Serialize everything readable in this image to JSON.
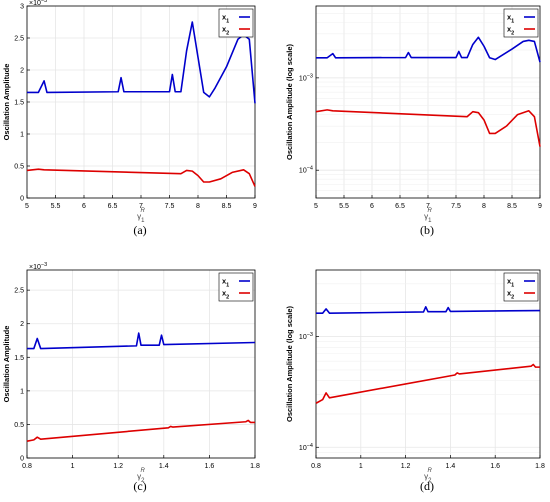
{
  "figure": {
    "captions": [
      "(a)",
      "(b)",
      "(c)",
      "(d)"
    ]
  },
  "colors": {
    "x1": "#0000cc",
    "x2": "#dd0000",
    "axis": "#000000",
    "grid": "#e6e6e6"
  },
  "chart_data": [
    {
      "type": "line",
      "panel": "a",
      "xlabel": "γ1R",
      "ylabel": "Oscillation Amplitude",
      "exponent_label": "×10−3",
      "xlim": [
        5,
        9
      ],
      "ylim": [
        0,
        0.003
      ],
      "yscale": "linear",
      "xticks": [
        5,
        5.5,
        6,
        6.5,
        7,
        7.5,
        8,
        8.5,
        9
      ],
      "xtick_labels": [
        "5",
        "5.5",
        "6",
        "6.5",
        "7",
        "7.5",
        "8",
        "8.5",
        "9"
      ],
      "yticks": [
        0,
        0.0005,
        0.001,
        0.0015,
        0.002,
        0.0025,
        0.003
      ],
      "ytick_labels": [
        "0",
        "0.5",
        "1",
        "1.5",
        "2",
        "2.5",
        "3"
      ],
      "grid": true,
      "legend": "top-right",
      "series": [
        {
          "name": "x1",
          "x": [
            5.0,
            5.2,
            5.3,
            5.35,
            6.6,
            6.65,
            6.7,
            7.5,
            7.55,
            7.6,
            7.7,
            7.8,
            7.9,
            8.0,
            8.1,
            8.2,
            8.3,
            8.5,
            8.7,
            8.8,
            8.9,
            9.0
          ],
          "y": [
            0.00165,
            0.00165,
            0.00183,
            0.00165,
            0.00166,
            0.00188,
            0.00166,
            0.00166,
            0.00193,
            0.00166,
            0.00166,
            0.0023,
            0.00275,
            0.0022,
            0.00165,
            0.00158,
            0.00172,
            0.00205,
            0.00248,
            0.00255,
            0.00248,
            0.00148
          ]
        },
        {
          "name": "x2",
          "x": [
            5.0,
            5.2,
            5.3,
            7.7,
            7.8,
            7.9,
            8.0,
            8.1,
            8.2,
            8.4,
            8.6,
            8.8,
            8.9,
            9.0
          ],
          "y": [
            0.00043,
            0.00045,
            0.00044,
            0.00038,
            0.00043,
            0.00042,
            0.00035,
            0.00025,
            0.00025,
            0.0003,
            0.0004,
            0.00044,
            0.00038,
            0.00018
          ]
        }
      ]
    },
    {
      "type": "line",
      "panel": "b",
      "xlabel": "γ1R",
      "ylabel": "Oscillation Amplitude (log scale)",
      "xlim": [
        5,
        9
      ],
      "ylim": [
        5e-05,
        0.006
      ],
      "yscale": "log",
      "xticks": [
        5,
        5.5,
        6,
        6.5,
        7,
        7.5,
        8,
        8.5,
        9
      ],
      "xtick_labels": [
        "5",
        "5.5",
        "6",
        "6.5",
        "7",
        "7.5",
        "8",
        "8.5",
        "9"
      ],
      "yticks": [
        0.0001,
        0.001
      ],
      "ytick_labels": [
        "10−4",
        "10−3"
      ],
      "grid": true,
      "legend": "top-right",
      "series": [
        {
          "name": "x1",
          "x": [
            5.0,
            5.2,
            5.3,
            5.35,
            6.6,
            6.65,
            6.7,
            7.5,
            7.55,
            7.6,
            7.7,
            7.8,
            7.9,
            8.0,
            8.1,
            8.2,
            8.3,
            8.5,
            8.7,
            8.8,
            8.9,
            9.0
          ],
          "y": [
            0.00165,
            0.00165,
            0.00183,
            0.00165,
            0.00166,
            0.00188,
            0.00166,
            0.00166,
            0.00193,
            0.00166,
            0.00166,
            0.0023,
            0.00275,
            0.0022,
            0.00165,
            0.00158,
            0.00172,
            0.00205,
            0.00248,
            0.00255,
            0.00248,
            0.00148
          ]
        },
        {
          "name": "x2",
          "x": [
            5.0,
            5.2,
            5.3,
            7.7,
            7.8,
            7.9,
            8.0,
            8.1,
            8.2,
            8.4,
            8.6,
            8.8,
            8.9,
            9.0
          ],
          "y": [
            0.00043,
            0.00045,
            0.00044,
            0.00038,
            0.00043,
            0.00042,
            0.00035,
            0.00025,
            0.00025,
            0.0003,
            0.0004,
            0.00044,
            0.00038,
            0.00018
          ]
        }
      ]
    },
    {
      "type": "line",
      "panel": "c",
      "xlabel": "γ2R",
      "ylabel": "Oscillation Amplitude",
      "exponent_label": "×10−3",
      "xlim": [
        0.8,
        1.8
      ],
      "ylim": [
        0,
        0.0028
      ],
      "yscale": "linear",
      "xticks": [
        0.8,
        1,
        1.2,
        1.4,
        1.6,
        1.8
      ],
      "xtick_labels": [
        "0.8",
        "1",
        "1.2",
        "1.4",
        "1.6",
        "1.8"
      ],
      "yticks": [
        0,
        0.0005,
        0.001,
        0.0015,
        0.002,
        0.0025
      ],
      "ytick_labels": [
        "0",
        "0.5",
        "1",
        "1.5",
        "2",
        "2.5"
      ],
      "grid": true,
      "legend": "top-right",
      "series": [
        {
          "name": "x1",
          "x": [
            0.8,
            0.83,
            0.845,
            0.86,
            1.28,
            1.29,
            1.3,
            1.38,
            1.39,
            1.4,
            1.8
          ],
          "y": [
            0.00163,
            0.00163,
            0.00178,
            0.00163,
            0.00167,
            0.00186,
            0.00168,
            0.00168,
            0.00183,
            0.00169,
            0.00172
          ]
        },
        {
          "name": "x2",
          "x": [
            0.8,
            0.83,
            0.845,
            0.86,
            1.42,
            1.43,
            1.44,
            1.76,
            1.77,
            1.78,
            1.8
          ],
          "y": [
            0.00025,
            0.00027,
            0.00031,
            0.00028,
            0.00045,
            0.00047,
            0.00046,
            0.00054,
            0.00056,
            0.00053,
            0.00053
          ]
        }
      ]
    },
    {
      "type": "line",
      "panel": "d",
      "xlabel": "γ2R",
      "ylabel": "Oscillation Amplitude (log scale)",
      "xlim": [
        0.8,
        1.8
      ],
      "ylim": [
        8e-05,
        0.004
      ],
      "yscale": "log",
      "xticks": [
        0.8,
        1,
        1.2,
        1.4,
        1.6,
        1.8
      ],
      "xtick_labels": [
        "0.8",
        "1",
        "1.2",
        "1.4",
        "1.6",
        "1.8"
      ],
      "yticks": [
        0.0001,
        0.001
      ],
      "ytick_labels": [
        "10−4",
        "10−3"
      ],
      "grid": true,
      "legend": "top-right",
      "series": [
        {
          "name": "x1",
          "x": [
            0.8,
            0.83,
            0.845,
            0.86,
            1.28,
            1.29,
            1.3,
            1.38,
            1.39,
            1.4,
            1.8
          ],
          "y": [
            0.00163,
            0.00163,
            0.00178,
            0.00163,
            0.00167,
            0.00186,
            0.00168,
            0.00168,
            0.00183,
            0.00169,
            0.00172
          ]
        },
        {
          "name": "x2",
          "x": [
            0.8,
            0.83,
            0.845,
            0.86,
            1.42,
            1.43,
            1.44,
            1.76,
            1.77,
            1.78,
            1.8
          ],
          "y": [
            0.00025,
            0.00027,
            0.00031,
            0.00028,
            0.00045,
            0.00047,
            0.00046,
            0.00054,
            0.00056,
            0.00053,
            0.00053
          ]
        }
      ]
    }
  ]
}
